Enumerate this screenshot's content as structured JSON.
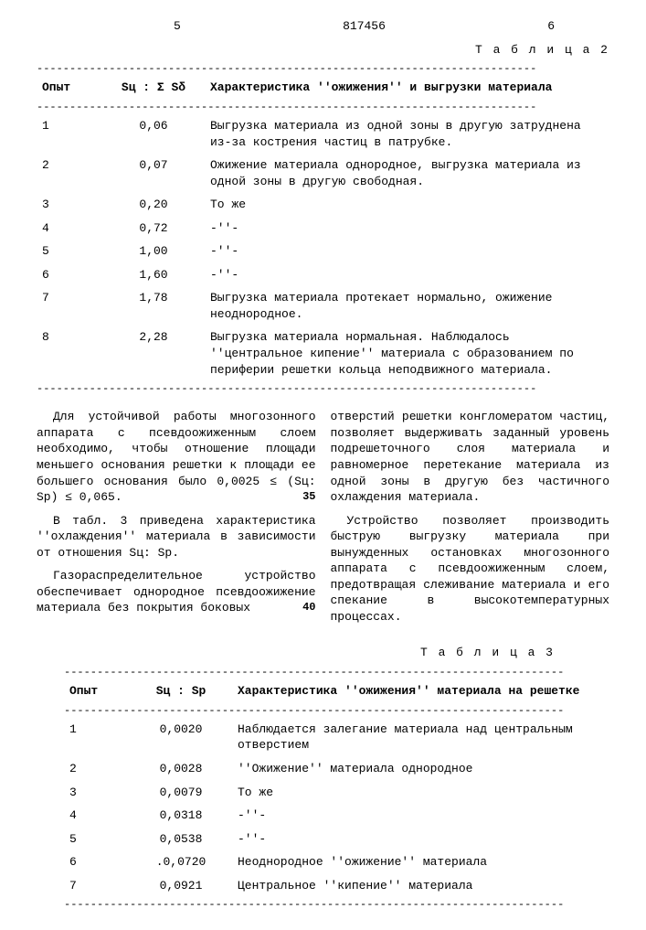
{
  "header": {
    "page_left": "5",
    "doc_id": "817456",
    "page_right": "6"
  },
  "table2": {
    "caption": "Т а б л и ц а   2",
    "col_opyt": "Опыт",
    "col_ratio": "Sц : Σ Sδ",
    "col_desc": "Характеристика ''ожижения'' и выгрузки материала",
    "rows": [
      {
        "n": "1",
        "r": "0,06",
        "d": "Выгрузка материала из одной зоны в другую затруднена из-за кострения частиц в патрубке."
      },
      {
        "n": "2",
        "r": "0,07",
        "d": "Ожижение материала однородное, выгрузка материала из одной зоны в другую свободная."
      },
      {
        "n": "3",
        "r": "0,20",
        "d": "То же"
      },
      {
        "n": "4",
        "r": "0,72",
        "d": "-''-"
      },
      {
        "n": "5",
        "r": "1,00",
        "d": "-''-"
      },
      {
        "n": "6",
        "r": "1,60",
        "d": "-''-"
      },
      {
        "n": "7",
        "r": "1,78",
        "d": "Выгрузка материала протекает нормально, ожижение неоднородное."
      },
      {
        "n": "8",
        "r": "2,28",
        "d": "Выгрузка материала нормальная. Наблюдалось ''центральное кипение'' материала с образованием по периферии решетки кольца неподвижного материала."
      }
    ]
  },
  "body": {
    "left_p1": "Для устойчивой работы многозонного аппарата с псевдоожиженным слоем необходимо, чтобы отношение площади меньшего основания решетки к площади ее большего основания было 0,0025 ≤ (Sц: Sр) ≤ 0,065.",
    "left_p2": "В табл. 3 приведена характеристика ''охлаждения'' материала в зависимости от отношения Sц: Sр.",
    "left_p3": "Газораспределительное устройство обеспечивает однородное псевдоожижение материала без покрытия боковых",
    "right_p1": "отверстий решетки конгломератом частиц, позволяет выдерживать заданный уровень подрешеточного слоя материала и равномерное перетекание материала из одной зоны в другую без частичного охлаждения материала.",
    "right_p2": "Устройство позволяет производить быструю выгрузку материала при вынужденных остановках многозонного аппарата с псевдоожиженным слоем, предотвращая слеживание материала и его спекание в высокотемпературных процессах.",
    "marker_35": "35",
    "marker_40": "40"
  },
  "table3": {
    "caption": "Т а б л и ц а   3",
    "col_opyt": "Опыт",
    "col_ratio": "Sц : Sр",
    "col_desc": "Характеристика ''ожижения'' материала на решетке",
    "rows": [
      {
        "n": "1",
        "r": "0,0020",
        "d": "Наблюдается залегание материала над центральным отверстием"
      },
      {
        "n": "2",
        "r": "0,0028",
        "d": "''Ожижение'' материала однородное"
      },
      {
        "n": "3",
        "r": "0,0079",
        "d": "То же"
      },
      {
        "n": "4",
        "r": "0,0318",
        "d": "-''-"
      },
      {
        "n": "5",
        "r": "0,0538",
        "d": "-''-"
      },
      {
        "n": "6",
        "r": ".0,0720",
        "d": "Неоднородное ''ожижение'' материала"
      },
      {
        "n": "7",
        "r": "0,0921",
        "d": "Центральное ''кипение'' материала"
      }
    ]
  },
  "sep": "----------------------------------------------------------------------------"
}
